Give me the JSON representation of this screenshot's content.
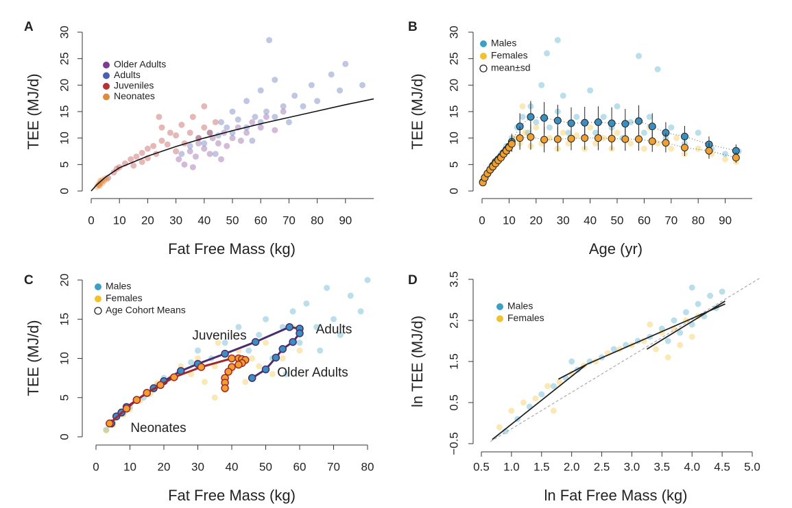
{
  "chart_data": [
    {
      "type": "scatter",
      "panel": "A",
      "x_label": "Fat Free Mass (kg)",
      "y_label": "TEE (MJ/d)",
      "xlim": [
        0,
        100
      ],
      "ylim": [
        0,
        30
      ],
      "xticks": [
        0,
        10,
        20,
        30,
        40,
        50,
        60,
        70,
        80,
        90
      ],
      "yticks": [
        0,
        5,
        10,
        15,
        20,
        25,
        30
      ],
      "series": [
        {
          "name": "Older Adults",
          "color": "#7d3c8f",
          "x": [
            31,
            33,
            35,
            37,
            38,
            40,
            42,
            43,
            45,
            47,
            48,
            50,
            52,
            53,
            55,
            57,
            60,
            62,
            65,
            68,
            36,
            46
          ],
          "values": [
            6,
            5,
            7.5,
            6.5,
            9,
            8,
            7,
            10,
            9,
            11,
            8.5,
            10,
            12,
            9.5,
            11,
            13,
            12,
            14,
            11.5,
            15,
            4.5,
            6
          ]
        },
        {
          "name": "Adults",
          "color": "#4a5fb0",
          "x": [
            32,
            35,
            38,
            40,
            42,
            45,
            46,
            48,
            50,
            50,
            52,
            55,
            55,
            58,
            60,
            60,
            62,
            65,
            65,
            68,
            70,
            72,
            75,
            78,
            80,
            85,
            88,
            90,
            96,
            63,
            44,
            57
          ],
          "values": [
            7,
            8.5,
            10,
            9,
            11,
            10.5,
            13,
            12,
            11,
            15,
            13.5,
            12,
            17,
            14,
            13,
            19,
            15,
            14,
            21,
            16,
            13,
            18,
            16,
            20,
            17,
            22,
            19,
            24,
            20,
            28.5,
            7,
            9.5
          ]
        },
        {
          "name": "Juveniles",
          "color": "#b83232",
          "x": [
            6,
            8,
            9,
            10,
            12,
            14,
            15,
            16,
            18,
            18,
            20,
            20,
            22,
            23,
            25,
            25,
            27,
            28,
            30,
            30,
            32,
            33,
            35,
            36,
            38,
            40,
            40,
            42,
            44,
            24
          ],
          "values": [
            2.5,
            3.5,
            4.2,
            4.5,
            5.2,
            6,
            4.8,
            6.5,
            7.2,
            5.5,
            8,
            6.2,
            8.5,
            7,
            9.5,
            12,
            8.8,
            11,
            10.5,
            7.5,
            12.5,
            9,
            11,
            14,
            10,
            12,
            16,
            11,
            13,
            14
          ]
        },
        {
          "name": "Neonates",
          "color": "#e08a3c",
          "x": [
            2,
            2.5,
            3,
            3,
            3.5,
            4,
            4,
            4.5,
            5,
            5.5,
            3.2,
            2.8
          ],
          "values": [
            0.8,
            1.2,
            1.4,
            1,
            1.7,
            1.5,
            2.1,
            1.9,
            2.4,
            2.2,
            1.9,
            1.1
          ]
        }
      ],
      "fit": {
        "color": "#111111",
        "x": [
          0,
          2,
          5,
          10,
          20,
          30,
          40,
          50,
          60,
          70,
          80,
          90,
          100
        ],
        "values": [
          0,
          1.2,
          2.6,
          4.4,
          6.6,
          8.4,
          10,
          11.4,
          12.7,
          13.9,
          15.1,
          16.3,
          17.4
        ]
      }
    },
    {
      "type": "scatter",
      "panel": "B",
      "x_label": "Age (yr)",
      "y_label": "TEE (MJ/d)",
      "xlim": [
        0,
        100
      ],
      "ylim": [
        0,
        30
      ],
      "xticks": [
        0,
        10,
        20,
        30,
        40,
        50,
        60,
        70,
        80,
        90
      ],
      "yticks": [
        0,
        5,
        10,
        15,
        20,
        25,
        30
      ],
      "series": [
        {
          "name": "Males",
          "color": "#3aa0c4",
          "x": [
            0.5,
            1,
            2,
            3,
            5,
            7,
            9,
            11,
            13,
            15,
            17,
            18,
            20,
            22,
            24,
            25,
            28,
            30,
            32,
            35,
            38,
            40,
            42,
            45,
            48,
            50,
            52,
            55,
            58,
            60,
            62,
            65,
            68,
            70,
            75,
            80,
            85,
            90,
            95,
            28
          ],
          "values": [
            1.8,
            2.5,
            3.5,
            4.5,
            5.5,
            7,
            8.5,
            10,
            12,
            14,
            11,
            16,
            13,
            20,
            26,
            12,
            15,
            18,
            11,
            14,
            13,
            19,
            11,
            14,
            12,
            16,
            10,
            13,
            25.5,
            11,
            14,
            23,
            10,
            12,
            9,
            11,
            8,
            7,
            7.5,
            28.5
          ]
        },
        {
          "name": "Females",
          "color": "#f2c12e",
          "x": [
            0.5,
            1,
            2,
            4,
            6,
            8,
            10,
            12,
            14,
            16,
            18,
            20,
            22,
            25,
            28,
            30,
            32,
            35,
            38,
            40,
            42,
            45,
            48,
            50,
            55,
            58,
            60,
            62,
            65,
            70,
            72,
            75,
            80,
            85,
            90,
            94,
            15
          ],
          "values": [
            1.5,
            2.3,
            3.2,
            4.5,
            5.5,
            7,
            8,
            10,
            9,
            11,
            8.5,
            12,
            9,
            10,
            8,
            11,
            9,
            10.5,
            8,
            12,
            9,
            10,
            8,
            11,
            9,
            10,
            8,
            12,
            9,
            8,
            10,
            7,
            8,
            7,
            6,
            5.5,
            16
          ]
        }
      ],
      "means": {
        "name": "mean±sd",
        "x": [
          0.3,
          1,
          2,
          3,
          4,
          5,
          6,
          7,
          8,
          9,
          10,
          11,
          14,
          18,
          23,
          28,
          33,
          38,
          43,
          48,
          53,
          58,
          63,
          68,
          75,
          84,
          94
        ],
        "series": [
          {
            "color": "#3a8fc0",
            "values": [
              1.7,
              2.5,
              3.3,
              4,
              4.8,
              5.5,
              6,
              6.5,
              7.2,
              7.8,
              8.4,
              9.3,
              12.2,
              14,
              13.8,
              13.3,
              12.8,
              12.9,
              13,
              12.8,
              12.7,
              13.2,
              12.2,
              11,
              10.3,
              8.8,
              7.6
            ],
            "sd": [
              0.3,
              0.4,
              0.5,
              0.6,
              0.6,
              0.8,
              0.8,
              0.9,
              1,
              1.1,
              1.2,
              1.5,
              2.5,
              3,
              3,
              3,
              3,
              3,
              3,
              3,
              2.8,
              3,
              2.5,
              2,
              2,
              1.5,
              1.2
            ]
          },
          {
            "color": "#f0a030",
            "values": [
              1.6,
              2.5,
              3.3,
              4,
              4.6,
              5.2,
              5.8,
              6.3,
              7,
              7.6,
              8.2,
              8.9,
              10,
              10.2,
              9.7,
              9.8,
              9.9,
              10,
              10,
              9.9,
              9.8,
              9.8,
              9.4,
              9.1,
              8.2,
              7.6,
              6.3
            ],
            "sd": [
              0.3,
              0.4,
              0.5,
              0.5,
              0.6,
              0.7,
              0.8,
              0.9,
              1,
              1,
              1.2,
              1.5,
              2.2,
              2.4,
              2.4,
              2.3,
              2.2,
              2.2,
              2.3,
              2.2,
              2.2,
              2.2,
              2,
              1.8,
              1.6,
              1.5,
              1
            ]
          }
        ]
      }
    },
    {
      "type": "scatter",
      "panel": "C",
      "x_label": "Fat Free Mass (kg)",
      "y_label": "TEE (MJ/d)",
      "xlim": [
        0,
        80
      ],
      "ylim": [
        0,
        20
      ],
      "xticks": [
        0,
        10,
        20,
        30,
        40,
        50,
        60,
        70,
        80
      ],
      "yticks": [
        0,
        5,
        10,
        15,
        20
      ],
      "series": [
        {
          "name": "Males",
          "color": "#3aa0c4",
          "x": [
            3,
            5,
            8,
            10,
            14,
            18,
            20,
            24,
            28,
            30,
            34,
            38,
            40,
            42,
            45,
            48,
            50,
            52,
            55,
            58,
            60,
            62,
            65,
            68,
            70,
            72,
            75,
            78,
            80,
            66,
            56
          ],
          "values": [
            0.9,
            1.8,
            3,
            3.8,
            5,
            6.5,
            7.5,
            8,
            9.5,
            11,
            10,
            12,
            9,
            14,
            11,
            13,
            15,
            10,
            14,
            16,
            12,
            17,
            14,
            19,
            15,
            13,
            18,
            16,
            20,
            11,
            8
          ]
        },
        {
          "name": "Females",
          "color": "#f2c12e",
          "x": [
            3,
            5,
            8,
            10,
            13,
            16,
            18,
            22,
            25,
            28,
            30,
            32,
            35,
            36,
            38,
            40,
            42,
            44,
            46,
            48,
            50,
            52,
            55,
            58,
            60,
            35
          ],
          "values": [
            0.8,
            1.5,
            2.8,
            3.5,
            4.6,
            5.5,
            6.8,
            7.5,
            9,
            8,
            10,
            7,
            9,
            12,
            6,
            8.5,
            11,
            7,
            10,
            9,
            12,
            8,
            10,
            14,
            11,
            5
          ]
        }
      ],
      "cohort_means": {
        "name": "Age Cohort Means",
        "series": [
          {
            "color": "#3a8fc0",
            "line_color": "#4b2c6e",
            "x": [
              4.5,
              6,
              7.5,
              9,
              12,
              15,
              17,
              20,
              25,
              30,
              38,
              47,
              57,
              60,
              60,
              58,
              55,
              53,
              50,
              46
            ],
            "values": [
              1.7,
              2.6,
              3.1,
              3.8,
              4.7,
              5.6,
              6.2,
              7.1,
              8.4,
              9.3,
              10.6,
              12.1,
              14,
              13.8,
              13.2,
              12.1,
              11.2,
              10.1,
              8.6,
              7.5
            ]
          },
          {
            "color": "#f0a030",
            "line_color": "#a0282c",
            "x": [
              4,
              9,
              12,
              15,
              19,
              23,
              31,
              40,
              42,
              43,
              44,
              43,
              42,
              40,
              39,
              38,
              38,
              38
            ],
            "values": [
              1.7,
              3.6,
              4.7,
              5.6,
              6.6,
              7.6,
              8.9,
              10,
              10,
              9.9,
              9.8,
              9.4,
              9.2,
              8.9,
              8.3,
              7.5,
              6.9,
              6.2
            ]
          }
        ]
      },
      "annotations": [
        "Juveniles",
        "Adults",
        "Older Adults",
        "Neonates"
      ]
    },
    {
      "type": "scatter",
      "panel": "D",
      "x_label": "ln Fat Free Mass (kg)",
      "y_label": "ln TEE (MJ/d)",
      "xlim": [
        0.5,
        5.0
      ],
      "ylim": [
        -0.5,
        3.5
      ],
      "xticks": [
        0.5,
        {
          "value": 1,
          "label": "1.0"
        },
        1.5,
        {
          "value": 2,
          "label": "2.0"
        },
        2.5,
        {
          "value": 3,
          "label": "3.0"
        },
        3.5,
        {
          "value": 4,
          "label": "4.0"
        },
        4.5,
        {
          "value": 5,
          "label": "5.0"
        }
      ],
      "yticks": [
        {
          "value": -0.5,
          "label": "−0.5"
        },
        0.5,
        1.5,
        2.5,
        3.5
      ],
      "series": [
        {
          "name": "Males",
          "color": "#3aa0c4",
          "x": [
            0.9,
            1.1,
            1.3,
            1.5,
            1.7,
            1.9,
            2.1,
            2.3,
            2.5,
            2.7,
            2.9,
            3.1,
            3.3,
            3.5,
            3.6,
            3.7,
            3.8,
            3.9,
            4.0,
            4.1,
            4.2,
            4.3,
            4.4,
            4.5,
            4.0,
            2.0
          ],
          "values": [
            -0.2,
            0.1,
            0.4,
            0.7,
            0.9,
            1.1,
            1.3,
            1.5,
            1.6,
            1.8,
            1.9,
            2,
            2.1,
            2.3,
            2,
            2.5,
            2.2,
            2.7,
            2.4,
            2.9,
            2.6,
            3.1,
            2.8,
            3.2,
            3.3,
            1.5
          ]
        },
        {
          "name": "Females",
          "color": "#f2c12e",
          "x": [
            0.8,
            1.0,
            1.2,
            1.4,
            1.6,
            1.8,
            2.0,
            2.2,
            2.4,
            2.6,
            2.8,
            3.0,
            3.2,
            3.4,
            3.5,
            3.6,
            3.7,
            3.8,
            3.9,
            4.0,
            4.1,
            3.3,
            1.7
          ],
          "values": [
            -0.1,
            0.3,
            0.5,
            0.6,
            0.9,
            1,
            1.2,
            1.4,
            1.5,
            1.7,
            1.8,
            1.9,
            2,
            1.8,
            2.2,
            1.6,
            2.3,
            1.9,
            2.5,
            2.1,
            2.6,
            2.4,
            0.3
          ]
        }
      ],
      "lines": [
        {
          "color": "#aaaaaa",
          "style": "dashed",
          "x": [
            0.65,
            5.15
          ],
          "values": [
            -0.45,
            3.55
          ]
        },
        {
          "color": "#222222",
          "style": "solid",
          "x": [
            0.68,
            2.25
          ],
          "values": [
            -0.4,
            1.43
          ]
        },
        {
          "color": "#222222",
          "style": "solid",
          "x": [
            1.78,
            2.25,
            4.55
          ],
          "values": [
            1.07,
            1.43,
            2.9
          ]
        },
        {
          "color": "#222222",
          "style": "solid",
          "x": [
            3.25,
            4.55
          ],
          "values": [
            1.8,
            2.97
          ]
        }
      ]
    }
  ]
}
